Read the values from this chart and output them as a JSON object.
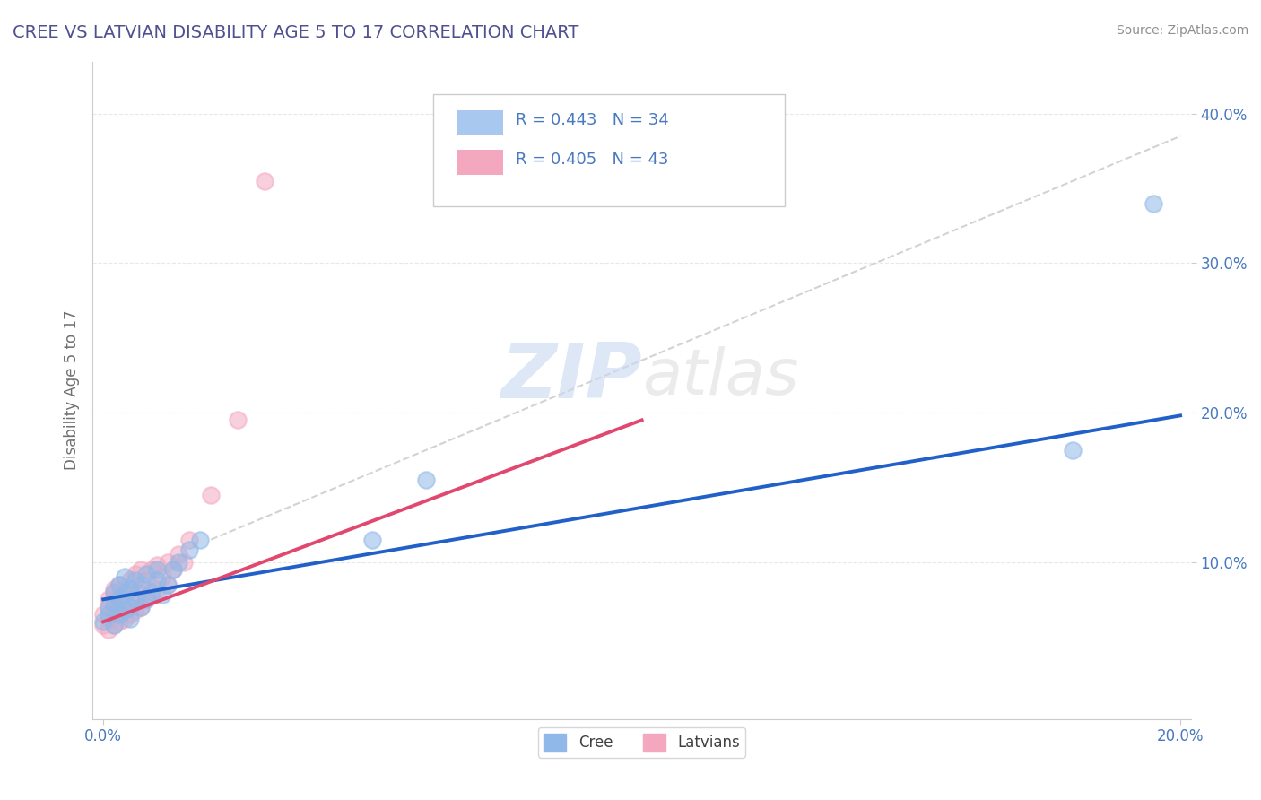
{
  "title": "CREE VS LATVIAN DISABILITY AGE 5 TO 17 CORRELATION CHART",
  "source": "Source: ZipAtlas.com",
  "ylabel": "Disability Age 5 to 17",
  "xlim": [
    -0.002,
    0.202
  ],
  "ylim": [
    -0.005,
    0.435
  ],
  "xticks": [
    0.0,
    0.2
  ],
  "xtick_labels": [
    "0.0%",
    "20.0%"
  ],
  "yticks": [
    0.1,
    0.2,
    0.3,
    0.4
  ],
  "ytick_labels": [
    "10.0%",
    "20.0%",
    "30.0%",
    "40.0%"
  ],
  "legend_entries": [
    {
      "color": "#a8c8f0",
      "R": 0.443,
      "N": 34
    },
    {
      "color": "#f4a8c0",
      "R": 0.405,
      "N": 43
    }
  ],
  "cree_color": "#90b8e8",
  "latvian_color": "#f4a8c0",
  "cree_line_color": "#2060c8",
  "latvian_line_color": "#e04870",
  "ref_line_color": "#c8c8c8",
  "watermark_zip": "ZIP",
  "watermark_atlas": "atlas",
  "background_color": "#ffffff",
  "grid_color": "#e8e8e8",
  "title_color": "#505090",
  "source_color": "#909090",
  "tick_label_color": "#4878c0",
  "axis_label_color": "#707070",
  "cree_points_x": [
    0.0,
    0.001,
    0.001,
    0.002,
    0.002,
    0.002,
    0.003,
    0.003,
    0.003,
    0.004,
    0.004,
    0.004,
    0.005,
    0.005,
    0.005,
    0.006,
    0.006,
    0.007,
    0.007,
    0.008,
    0.008,
    0.009,
    0.01,
    0.01,
    0.011,
    0.012,
    0.013,
    0.014,
    0.016,
    0.018,
    0.05,
    0.06,
    0.18,
    0.195
  ],
  "cree_points_y": [
    0.06,
    0.065,
    0.07,
    0.058,
    0.072,
    0.08,
    0.065,
    0.075,
    0.085,
    0.068,
    0.078,
    0.09,
    0.07,
    0.082,
    0.062,
    0.075,
    0.088,
    0.07,
    0.085,
    0.075,
    0.092,
    0.08,
    0.088,
    0.095,
    0.078,
    0.085,
    0.095,
    0.1,
    0.108,
    0.115,
    0.115,
    0.155,
    0.175,
    0.34
  ],
  "latvian_points_x": [
    0.0,
    0.0,
    0.001,
    0.001,
    0.001,
    0.001,
    0.002,
    0.002,
    0.002,
    0.002,
    0.002,
    0.003,
    0.003,
    0.003,
    0.003,
    0.004,
    0.004,
    0.004,
    0.005,
    0.005,
    0.005,
    0.006,
    0.006,
    0.006,
    0.007,
    0.007,
    0.007,
    0.008,
    0.008,
    0.009,
    0.009,
    0.01,
    0.01,
    0.011,
    0.012,
    0.012,
    0.013,
    0.014,
    0.015,
    0.016,
    0.02,
    0.025,
    0.03
  ],
  "latvian_points_y": [
    0.058,
    0.065,
    0.055,
    0.062,
    0.07,
    0.075,
    0.058,
    0.065,
    0.07,
    0.078,
    0.082,
    0.06,
    0.068,
    0.075,
    0.085,
    0.062,
    0.072,
    0.08,
    0.065,
    0.075,
    0.088,
    0.068,
    0.08,
    0.092,
    0.07,
    0.082,
    0.095,
    0.075,
    0.088,
    0.078,
    0.095,
    0.082,
    0.098,
    0.09,
    0.085,
    0.1,
    0.095,
    0.105,
    0.1,
    0.115,
    0.145,
    0.195,
    0.355
  ],
  "cree_line_x0": 0.0,
  "cree_line_y0": 0.075,
  "cree_line_x1": 0.2,
  "cree_line_y1": 0.198,
  "latvian_line_x0": 0.0,
  "latvian_line_y0": 0.06,
  "latvian_line_x1": 0.1,
  "latvian_line_y1": 0.195,
  "ref_line_x0": 0.02,
  "ref_line_y0": 0.115,
  "ref_line_x1": 0.2,
  "ref_line_y1": 0.385
}
